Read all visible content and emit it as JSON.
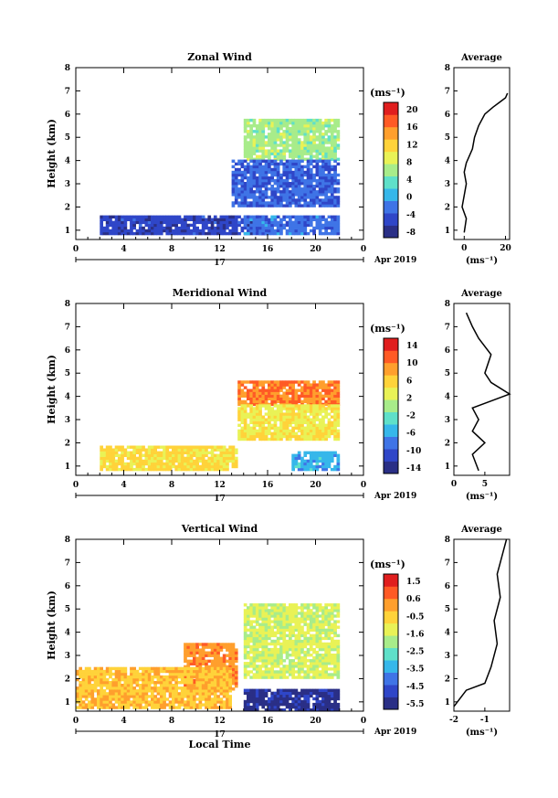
{
  "panels": [
    {
      "title": "Zonal Wind",
      "ylabel": "Height (km)",
      "unit": "(ms⁻¹)",
      "cb_ticks": [
        "20",
        "16",
        "12",
        "8",
        "4",
        "0",
        "-4",
        "-8"
      ],
      "avg_title": "Average",
      "avg_xticks": [
        "0",
        "20"
      ],
      "avg_xlabel": "(ms⁻¹)"
    },
    {
      "title": "Meridional Wind",
      "ylabel": "Height (km)",
      "unit": "(ms⁻¹)",
      "cb_ticks": [
        "14",
        "10",
        "6",
        "2",
        "-2",
        "-6",
        "-10",
        "-14"
      ],
      "avg_title": "Average",
      "avg_xticks": [
        "0",
        "5"
      ],
      "avg_xlabel": "(ms⁻¹)"
    },
    {
      "title": "Vertical Wind",
      "ylabel": "Height (km)",
      "unit": "(ms⁻¹)",
      "cb_ticks": [
        "1.5",
        "0.6",
        "-0.5",
        "-1.6",
        "-2.5",
        "-3.5",
        "-4.5",
        "-5.5"
      ],
      "avg_title": "Average",
      "avg_xticks": [
        "-2",
        "-1"
      ],
      "avg_xlabel": "(ms⁻¹)"
    }
  ],
  "xticks": [
    "0",
    "4",
    "8",
    "12",
    "16",
    "20",
    "0"
  ],
  "yticks": [
    "1",
    "2",
    "3",
    "4",
    "5",
    "6",
    "7",
    "8"
  ],
  "day_label": "17",
  "month_label": "Apr 2019",
  "xlabel": "Local Time",
  "colors": {
    "scale": [
      "#2a2f86",
      "#2f46c8",
      "#3f74e6",
      "#36b7ea",
      "#5fe0c9",
      "#a8ec8a",
      "#e9f256",
      "#ffd33a",
      "#ff9f2d",
      "#ff5a25",
      "#e01e1e"
    ],
    "line": "#000000"
  },
  "chart_data": [
    {
      "type": "heatmap",
      "title": "Zonal Wind",
      "xlabel": "",
      "ylabel": "Height (km)",
      "xlim": [
        0,
        24
      ],
      "ylim": [
        0.6,
        8
      ],
      "colorbar": {
        "label": "(ms⁻¹)",
        "ticks": [
          20,
          16,
          12,
          8,
          4,
          0,
          -4,
          -8
        ],
        "range": [
          -10,
          22
        ]
      },
      "regions": [
        {
          "x": [
            14,
            22
          ],
          "y": [
            4.0,
            5.7
          ],
          "value": 6
        },
        {
          "x": [
            13,
            22
          ],
          "y": [
            2.0,
            4.0
          ],
          "value": -4
        },
        {
          "x": [
            2,
            16
          ],
          "y": [
            0.8,
            1.6
          ],
          "value": -6
        },
        {
          "x": [
            14,
            22
          ],
          "y": [
            0.8,
            1.6
          ],
          "value": -3
        }
      ],
      "average_profile": {
        "title": "Average",
        "xlabel": "(ms⁻¹)",
        "xlim": [
          -5,
          22
        ],
        "ylim": [
          0.6,
          8
        ],
        "x": [
          0,
          1,
          -1,
          0,
          1,
          0,
          1,
          4,
          5,
          7,
          10,
          14,
          17,
          20,
          21
        ],
        "y": [
          0.9,
          1.5,
          2.0,
          2.5,
          3.0,
          3.5,
          3.9,
          4.5,
          5.0,
          5.5,
          6.0,
          6.3,
          6.5,
          6.7,
          6.9
        ]
      }
    },
    {
      "type": "heatmap",
      "title": "Meridional Wind",
      "xlabel": "",
      "ylabel": "Height (km)",
      "xlim": [
        0,
        24
      ],
      "ylim": [
        0.6,
        8
      ],
      "colorbar": {
        "label": "(ms⁻¹)",
        "ticks": [
          14,
          10,
          6,
          2,
          -2,
          -6,
          -10,
          -14
        ],
        "range": [
          -16,
          16
        ]
      },
      "regions": [
        {
          "x": [
            13.5,
            22
          ],
          "y": [
            3.6,
            4.6
          ],
          "value": 10
        },
        {
          "x": [
            13.5,
            22
          ],
          "y": [
            2.1,
            3.6
          ],
          "value": 4
        },
        {
          "x": [
            18,
            22
          ],
          "y": [
            0.8,
            1.6
          ],
          "value": -6
        },
        {
          "x": [
            2,
            13.5
          ],
          "y": [
            0.8,
            1.8
          ],
          "value": 5
        }
      ],
      "average_profile": {
        "title": "Average",
        "xlabel": "(ms⁻¹)",
        "xlim": [
          0,
          9
        ],
        "ylim": [
          0.6,
          8
        ],
        "x": [
          4,
          3,
          5,
          3,
          4,
          3,
          6,
          9,
          6,
          5,
          6,
          4,
          3,
          2
        ],
        "y": [
          0.8,
          1.5,
          2.0,
          2.5,
          3.0,
          3.5,
          3.8,
          4.1,
          4.6,
          5.0,
          5.8,
          6.5,
          7.0,
          7.6
        ]
      }
    },
    {
      "type": "heatmap",
      "title": "Vertical Wind",
      "xlabel": "Local Time",
      "ylabel": "Height (km)",
      "xlim": [
        0,
        24
      ],
      "ylim": [
        0.6,
        8
      ],
      "colorbar": {
        "label": "(ms⁻¹)",
        "ticks": [
          1.5,
          0.6,
          -0.5,
          -1.6,
          -2.5,
          -3.5,
          -4.5,
          -5.5
        ],
        "range": [
          -6,
          2
        ]
      },
      "regions": [
        {
          "x": [
            14,
            22
          ],
          "y": [
            2.0,
            5.2
          ],
          "value": -1.5
        },
        {
          "x": [
            14,
            22
          ],
          "y": [
            0.6,
            1.5
          ],
          "value": -5.5
        },
        {
          "x": [
            9,
            13.5
          ],
          "y": [
            1.5,
            3.5
          ],
          "value": 0.3
        },
        {
          "x": [
            0,
            13
          ],
          "y": [
            0.7,
            2.5
          ],
          "value": -0.3
        }
      ],
      "average_profile": {
        "title": "Average",
        "xlabel": "(ms⁻¹)",
        "xlim": [
          -2,
          -0.2
        ],
        "ylim": [
          0.6,
          8
        ],
        "x": [
          -2.0,
          -1.6,
          -1.0,
          -0.8,
          -0.6,
          -0.7,
          -0.5,
          -0.6,
          -0.5,
          -0.4,
          -0.3
        ],
        "y": [
          0.8,
          1.5,
          1.8,
          2.5,
          3.5,
          4.5,
          5.5,
          6.5,
          7.0,
          7.5,
          8.0
        ]
      }
    }
  ]
}
